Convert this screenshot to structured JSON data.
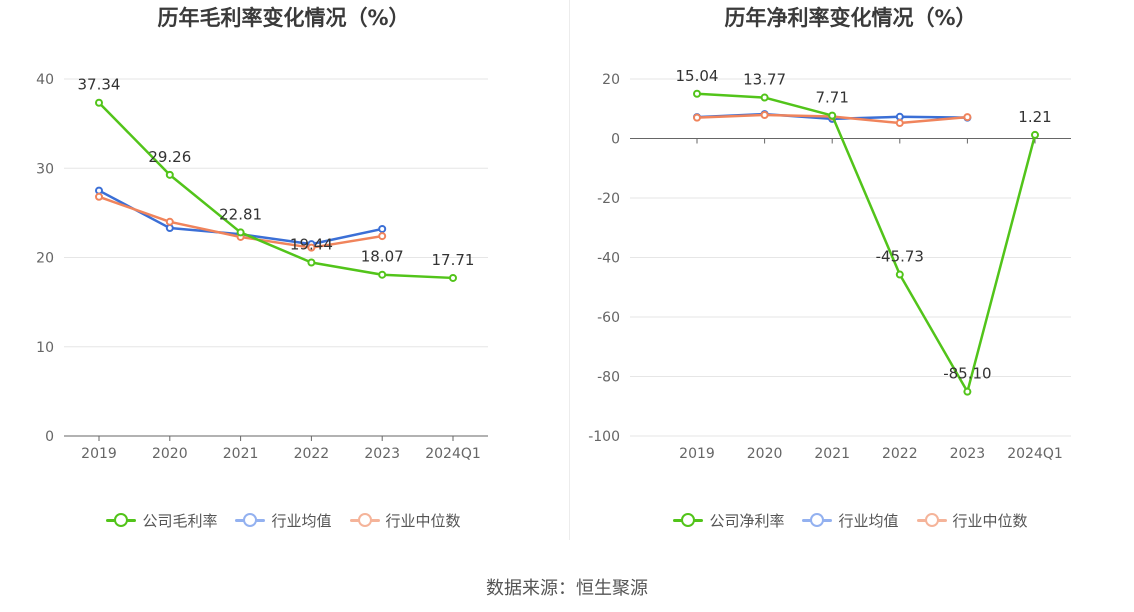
{
  "colors": {
    "company": "#52c41a",
    "avg": "#3b6fd6",
    "median": "#f0845c",
    "avg_legend": "#93b1f0",
    "median_legend": "#f5b49a"
  },
  "source": "数据来源：恒生聚源",
  "chart_data": [
    {
      "type": "line",
      "title": "历年毛利率变化情况（%）",
      "categories": [
        "2019",
        "2020",
        "2021",
        "2022",
        "2023",
        "2024Q1"
      ],
      "ylim": [
        0,
        40
      ],
      "yticks": [
        0,
        10,
        20,
        30,
        40
      ],
      "grid": true,
      "legend_position": "bottom",
      "series": [
        {
          "key": "company",
          "name": "公司毛利率",
          "values": [
            37.34,
            29.26,
            22.81,
            19.44,
            18.07,
            17.71
          ],
          "labels": [
            "37.34",
            "29.26",
            "22.81",
            "19.44",
            "18.07",
            "17.71"
          ]
        },
        {
          "key": "avg",
          "name": "行业均值",
          "values": [
            27.5,
            23.3,
            22.6,
            21.5,
            23.2,
            null
          ]
        },
        {
          "key": "median",
          "name": "行业中位数",
          "values": [
            26.8,
            24.0,
            22.3,
            21.1,
            22.4,
            null
          ]
        }
      ]
    },
    {
      "type": "line",
      "title": "历年净利率变化情况（%）",
      "categories": [
        "2019",
        "2020",
        "2021",
        "2022",
        "2023",
        "2024Q1"
      ],
      "ylim": [
        -100,
        20
      ],
      "yticks": [
        -100,
        -80,
        -60,
        -40,
        -20,
        0,
        20
      ],
      "grid": true,
      "legend_position": "bottom",
      "series": [
        {
          "key": "company",
          "name": "公司净利率",
          "values": [
            15.04,
            13.77,
            7.71,
            -45.73,
            -85.1,
            1.21
          ],
          "labels": [
            "15.04",
            "13.77",
            "7.71",
            "-45.73",
            "-85.10",
            "1.21"
          ]
        },
        {
          "key": "avg",
          "name": "行业均值",
          "values": [
            7.2,
            8.2,
            6.6,
            7.3,
            7.0,
            null
          ]
        },
        {
          "key": "median",
          "name": "行业中位数",
          "values": [
            7.0,
            7.9,
            7.4,
            5.2,
            7.2,
            null
          ]
        }
      ]
    }
  ]
}
